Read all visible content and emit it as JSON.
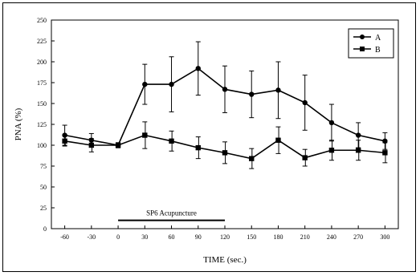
{
  "chart_data": {
    "type": "line",
    "title": "",
    "xlabel": "TIME (sec.)",
    "ylabel": "PNA (%)",
    "x": [
      -60,
      -30,
      0,
      30,
      60,
      90,
      120,
      150,
      180,
      210,
      240,
      270,
      300
    ],
    "xlim": [
      -75,
      315
    ],
    "ylim": [
      0,
      250
    ],
    "yticks": [
      0,
      25,
      50,
      75,
      100,
      125,
      150,
      175,
      200,
      225,
      250
    ],
    "grid": false,
    "legend": "top-right",
    "series": [
      {
        "name": "A",
        "marker": "circle",
        "values": [
          112,
          106,
          100,
          173,
          173,
          192,
          167,
          161,
          166,
          151,
          127,
          112,
          105
        ],
        "errors": [
          12,
          8,
          3,
          24,
          33,
          32,
          28,
          28,
          34,
          33,
          22,
          15,
          10
        ]
      },
      {
        "name": "B",
        "marker": "square",
        "values": [
          105,
          100,
          100,
          112,
          105,
          97,
          91,
          84,
          106,
          85,
          94,
          94,
          91
        ],
        "errors": [
          6,
          8,
          3,
          16,
          12,
          13,
          13,
          12,
          16,
          10,
          12,
          12,
          12
        ]
      }
    ],
    "annotation": {
      "text": "SP6 Acupuncture",
      "x_range": [
        0,
        120
      ]
    }
  }
}
